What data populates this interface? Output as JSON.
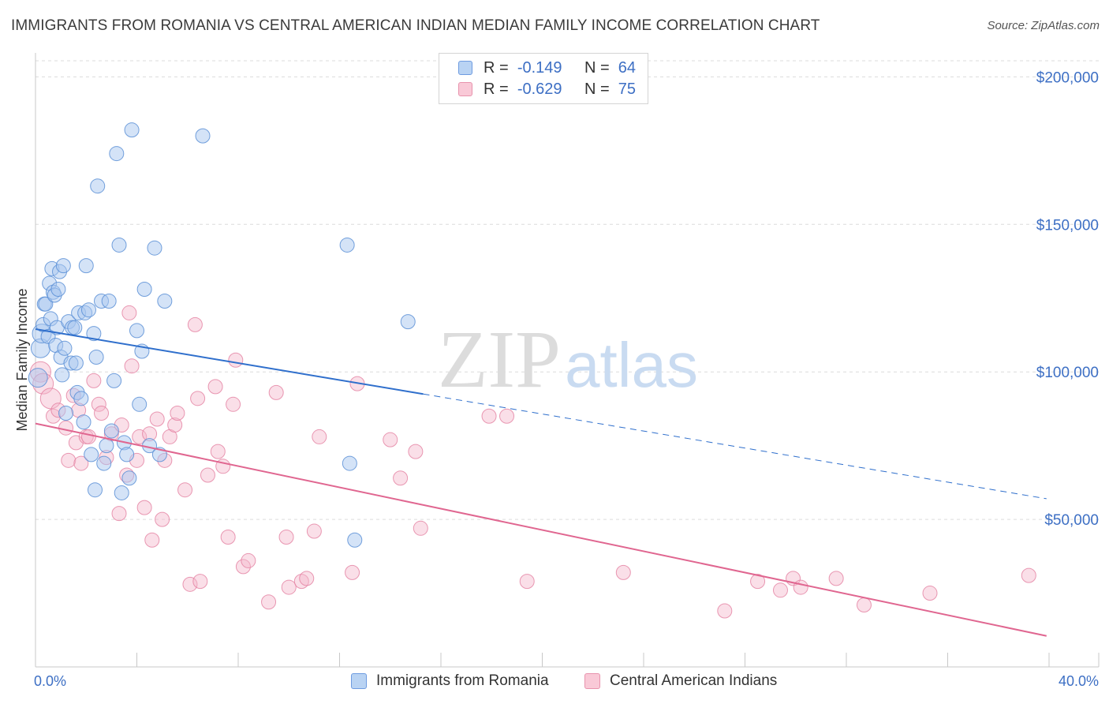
{
  "title": "IMMIGRANTS FROM ROMANIA VS CENTRAL AMERICAN INDIAN MEDIAN FAMILY INCOME CORRELATION CHART",
  "source": "Source: ZipAtlas.com",
  "watermark": {
    "zip": "ZIP",
    "atlas": "atlas"
  },
  "legend": {
    "rows": [
      {
        "r_label": "R =",
        "r_value": "-0.149",
        "n_label": "N =",
        "n_value": "64"
      },
      {
        "r_label": "R =",
        "r_value": "-0.629",
        "n_label": "N =",
        "n_value": "75"
      }
    ]
  },
  "bottom_legend": [
    "Immigrants from Romania",
    "Central American Indians"
  ],
  "colors": {
    "blue_fill": "#a9c8ef",
    "blue_stroke": "#5b8fd6",
    "blue_line": "#2f6fcc",
    "pink_fill": "#f5b9cb",
    "pink_stroke": "#e37fa0",
    "pink_line": "#e06690",
    "axis_text": "#3d6fc4",
    "grid": "#dcdcdc"
  },
  "chart_data": {
    "type": "scatter",
    "title": "IMMIGRANTS FROM ROMANIA VS CENTRAL AMERICAN INDIAN MEDIAN FAMILY INCOME CORRELATION CHART",
    "xlabel": "",
    "ylabel": "Median Family Income",
    "xlim": [
      0,
      40
    ],
    "ylim": [
      0,
      210000
    ],
    "x_tick_labels": [
      "0.0%",
      "40.0%"
    ],
    "y_ticks": [
      50000,
      100000,
      150000,
      200000
    ],
    "y_tick_labels": [
      "$50,000",
      "$100,000",
      "$150,000",
      "$200,000"
    ],
    "grid": "horizontal dashed",
    "legend_position": "top-center",
    "series": [
      {
        "name": "Immigrants from Romania",
        "R": -0.149,
        "N": 64,
        "trend": {
          "x0": 0,
          "y0": 114500,
          "x1": 15.3,
          "y1": 92500,
          "dash_x1": 39.9,
          "dash_y1": 57000
        },
        "points": [
          [
            0.1,
            98000
          ],
          [
            0.2,
            108000
          ],
          [
            0.25,
            113000
          ],
          [
            0.3,
            116000
          ],
          [
            0.35,
            123000
          ],
          [
            0.4,
            123000
          ],
          [
            0.5,
            112000
          ],
          [
            0.55,
            130000
          ],
          [
            0.6,
            118000
          ],
          [
            0.65,
            135000
          ],
          [
            0.7,
            127000
          ],
          [
            0.75,
            126000
          ],
          [
            0.8,
            109000
          ],
          [
            0.85,
            115000
          ],
          [
            0.9,
            128000
          ],
          [
            0.95,
            134000
          ],
          [
            1.0,
            105000
          ],
          [
            1.05,
            99000
          ],
          [
            1.1,
            136000
          ],
          [
            1.15,
            108000
          ],
          [
            1.2,
            86000
          ],
          [
            1.3,
            117000
          ],
          [
            1.4,
            103000
          ],
          [
            1.45,
            115000
          ],
          [
            1.55,
            115000
          ],
          [
            1.6,
            103000
          ],
          [
            1.65,
            93000
          ],
          [
            1.7,
            120000
          ],
          [
            1.8,
            91000
          ],
          [
            1.9,
            83000
          ],
          [
            1.95,
            120000
          ],
          [
            2.0,
            136000
          ],
          [
            2.1,
            121000
          ],
          [
            2.2,
            72000
          ],
          [
            2.3,
            113000
          ],
          [
            2.35,
            60000
          ],
          [
            2.4,
            105000
          ],
          [
            2.45,
            163000
          ],
          [
            2.6,
            124000
          ],
          [
            2.7,
            69000
          ],
          [
            2.8,
            75000
          ],
          [
            2.9,
            124000
          ],
          [
            3.0,
            80000
          ],
          [
            3.1,
            97000
          ],
          [
            3.2,
            174000
          ],
          [
            3.3,
            143000
          ],
          [
            3.4,
            59000
          ],
          [
            3.5,
            76000
          ],
          [
            3.6,
            72000
          ],
          [
            3.7,
            64000
          ],
          [
            3.8,
            182000
          ],
          [
            4.0,
            114000
          ],
          [
            4.1,
            89000
          ],
          [
            4.2,
            107000
          ],
          [
            4.3,
            128000
          ],
          [
            4.5,
            75000
          ],
          [
            4.7,
            142000
          ],
          [
            4.9,
            72000
          ],
          [
            5.1,
            124000
          ],
          [
            6.6,
            180000
          ],
          [
            12.3,
            143000
          ],
          [
            12.4,
            69000
          ],
          [
            12.6,
            43000
          ],
          [
            14.7,
            117000
          ]
        ]
      },
      {
        "name": "Central American Indians",
        "R": -0.629,
        "N": 75,
        "trend": {
          "x0": 0,
          "y0": 82500,
          "x1": 39.9,
          "y1": 10500
        },
        "points": [
          [
            0.2,
            100000
          ],
          [
            0.3,
            96000
          ],
          [
            0.6,
            91000
          ],
          [
            0.7,
            85000
          ],
          [
            0.9,
            87000
          ],
          [
            1.2,
            81000
          ],
          [
            1.3,
            70000
          ],
          [
            1.5,
            92000
          ],
          [
            1.6,
            76000
          ],
          [
            1.7,
            87000
          ],
          [
            1.8,
            69000
          ],
          [
            2.0,
            78000
          ],
          [
            2.1,
            78000
          ],
          [
            2.3,
            97000
          ],
          [
            2.5,
            89000
          ],
          [
            2.6,
            86000
          ],
          [
            2.8,
            71000
          ],
          [
            3.0,
            79000
          ],
          [
            3.3,
            52000
          ],
          [
            3.4,
            82000
          ],
          [
            3.6,
            65000
          ],
          [
            3.7,
            120000
          ],
          [
            3.8,
            102000
          ],
          [
            4.0,
            70000
          ],
          [
            4.1,
            78000
          ],
          [
            4.3,
            54000
          ],
          [
            4.5,
            79000
          ],
          [
            4.6,
            43000
          ],
          [
            4.8,
            84000
          ],
          [
            5.0,
            50000
          ],
          [
            5.1,
            70000
          ],
          [
            5.3,
            78000
          ],
          [
            5.5,
            82000
          ],
          [
            5.6,
            86000
          ],
          [
            5.9,
            60000
          ],
          [
            6.1,
            28000
          ],
          [
            6.3,
            116000
          ],
          [
            6.4,
            91000
          ],
          [
            6.5,
            29000
          ],
          [
            6.8,
            65000
          ],
          [
            7.1,
            95000
          ],
          [
            7.2,
            73000
          ],
          [
            7.4,
            68000
          ],
          [
            7.6,
            44000
          ],
          [
            7.8,
            89000
          ],
          [
            7.9,
            104000
          ],
          [
            8.2,
            34000
          ],
          [
            8.4,
            36000
          ],
          [
            9.2,
            22000
          ],
          [
            9.5,
            93000
          ],
          [
            9.9,
            44000
          ],
          [
            10.0,
            27000
          ],
          [
            10.5,
            29000
          ],
          [
            10.7,
            30000
          ],
          [
            11.0,
            46000
          ],
          [
            11.2,
            78000
          ],
          [
            12.5,
            32000
          ],
          [
            12.7,
            96000
          ],
          [
            14.0,
            77000
          ],
          [
            14.4,
            64000
          ],
          [
            15.0,
            73000
          ],
          [
            15.2,
            47000
          ],
          [
            17.9,
            85000
          ],
          [
            18.6,
            85000
          ],
          [
            19.4,
            29000
          ],
          [
            23.2,
            32000
          ],
          [
            27.2,
            19000
          ],
          [
            28.5,
            29000
          ],
          [
            29.4,
            26000
          ],
          [
            29.9,
            30000
          ],
          [
            30.2,
            27000
          ],
          [
            31.6,
            30000
          ],
          [
            32.7,
            21000
          ],
          [
            35.3,
            25000
          ],
          [
            39.2,
            31000
          ]
        ]
      }
    ]
  }
}
